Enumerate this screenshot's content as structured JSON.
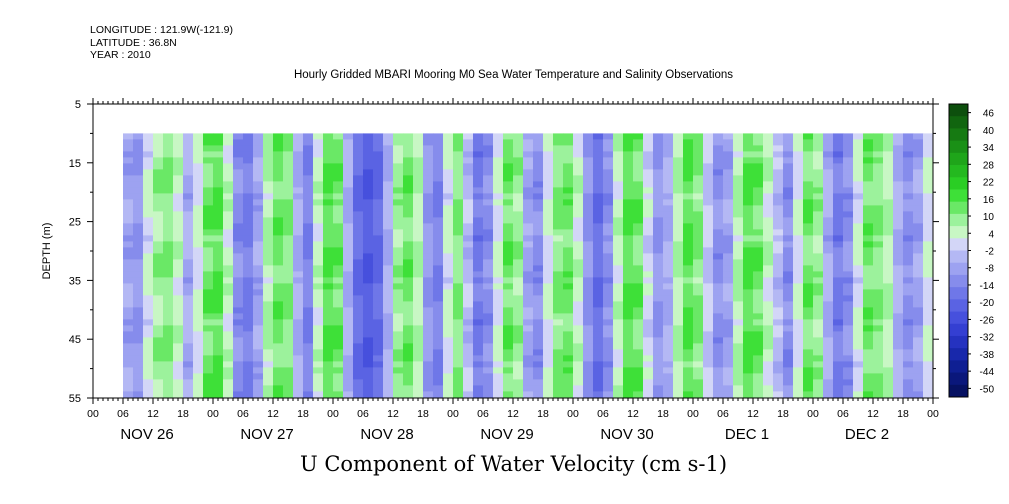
{
  "header": {
    "longitude": "LONGITUDE : 121.9W(-121.9)",
    "latitude": "LATITUDE : 36.8N",
    "year": "YEAR : 2010"
  },
  "chart_data": {
    "type": "heatmap",
    "title": "Hourly Gridded MBARI Mooring M0 Sea Water Temperature and Salinity Observations",
    "xlabel": "U Component of Water Velocity (cm s-1)",
    "ylabel": "DEPTH (m)",
    "y_ticks": [
      "5",
      "15",
      "25",
      "35",
      "45",
      "55"
    ],
    "ylim": [
      55,
      5
    ],
    "x_hour_ticks": [
      "00",
      "06",
      "12",
      "18",
      "00",
      "06",
      "12",
      "18",
      "00",
      "06",
      "12",
      "18",
      "00",
      "06",
      "12",
      "18",
      "00",
      "06",
      "12",
      "18",
      "00",
      "06",
      "12",
      "18",
      "00",
      "06",
      "12",
      "18",
      "00"
    ],
    "x_day_labels": [
      "NOV 26",
      "NOV 27",
      "NOV 28",
      "NOV 29",
      "NOV 30",
      "DEC  1",
      "DEC  2"
    ],
    "data_depth_range": [
      10,
      55
    ],
    "data_start_hour": 6,
    "colorbar_labels": [
      "46",
      "40",
      "34",
      "28",
      "22",
      "16",
      "10",
      "4",
      "-2",
      "-8",
      "-14",
      "-20",
      "-26",
      "-32",
      "-38",
      "-44",
      "-50"
    ],
    "colorbar_colors": [
      "#0d4f0d",
      "#11650f",
      "#167a12",
      "#1a9016",
      "#1fa51a",
      "#24b91f",
      "#2ace24",
      "#3ee038",
      "#6ae866",
      "#9cf29c",
      "#c8f7c4",
      "#d3d6f7",
      "#b4b8f4",
      "#9da2f1",
      "#868cec",
      "#6f77e8",
      "#5a63e3",
      "#4650dd",
      "#343fd2",
      "#2532c0",
      "#1828ab",
      "#0f1f93",
      "#0a177b",
      "#061162"
    ],
    "columns": [
      {
        "day": "NOV 26",
        "hours": [
          6,
          8,
          10,
          12,
          14,
          16,
          18,
          20,
          22
        ],
        "u": [
          -6,
          -8,
          4,
          10,
          12,
          6,
          -4,
          4,
          14
        ]
      },
      {
        "day": "NOV 27",
        "hours": [
          0,
          2,
          4,
          6,
          8,
          10,
          12,
          14,
          16,
          18,
          20,
          22
        ],
        "u": [
          16,
          6,
          -10,
          -14,
          -6,
          8,
          14,
          12,
          -4,
          -12,
          6,
          16
        ]
      },
      {
        "day": "NOV 28",
        "hours": [
          0,
          2,
          4,
          6,
          8,
          10,
          12,
          14,
          16,
          18,
          20,
          22
        ],
        "u": [
          14,
          -4,
          -16,
          -20,
          -16,
          -4,
          10,
          14,
          8,
          -8,
          -12,
          4
        ]
      },
      {
        "day": "NOV 29",
        "hours": [
          0,
          2,
          4,
          6,
          8,
          10,
          12,
          14,
          16,
          18,
          20,
          22
        ],
        "u": [
          12,
          -2,
          -14,
          -10,
          4,
          14,
          10,
          -6,
          -10,
          4,
          12,
          14
        ]
      },
      {
        "day": "NOV 30",
        "hours": [
          0,
          2,
          4,
          6,
          8,
          10,
          12,
          14,
          16,
          18,
          20,
          22
        ],
        "u": [
          6,
          -8,
          -16,
          -10,
          6,
          16,
          14,
          2,
          -8,
          -4,
          8,
          16
        ]
      },
      {
        "day": "DEC 1",
        "hours": [
          0,
          2,
          4,
          6,
          8,
          10,
          12,
          14,
          16,
          18,
          20,
          22
        ],
        "u": [
          12,
          0,
          -10,
          -6,
          8,
          16,
          14,
          6,
          -2,
          -10,
          4,
          14
        ]
      },
      {
        "day": "DEC 2",
        "hours": [
          0,
          2,
          4,
          6,
          8,
          10,
          12,
          14,
          16,
          18,
          20,
          22
        ],
        "u": [
          10,
          -4,
          -14,
          -10,
          4,
          14,
          12,
          8,
          -4,
          -10,
          -6,
          4
        ]
      }
    ]
  }
}
